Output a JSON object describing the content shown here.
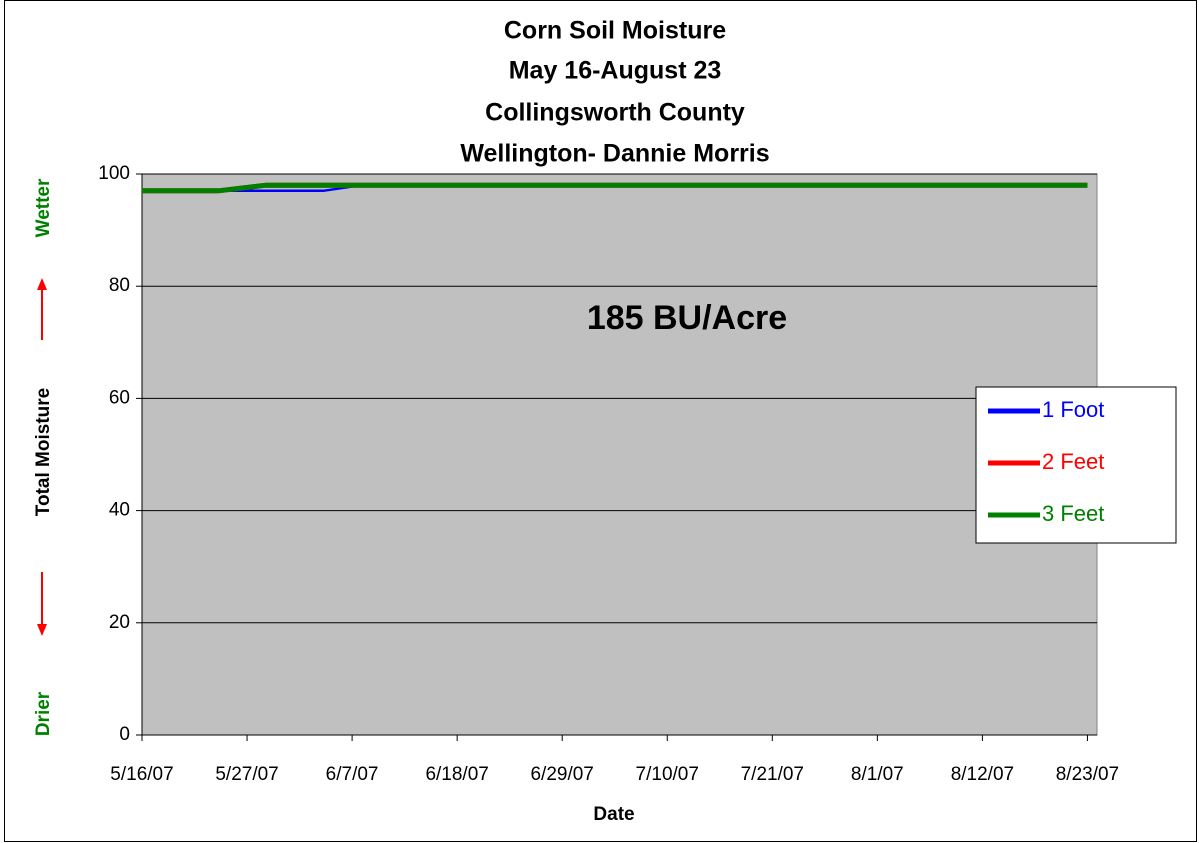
{
  "chart_data": {
    "type": "line",
    "title": [
      "Corn Soil Moisture",
      "May 16-August 23",
      "Collingsworth County",
      "Wellington- Dannie Morris"
    ],
    "annotation": "185 BU/Acre",
    "xlabel": "Date",
    "ylabel": "Total Moisture",
    "ylabel_top": "Wetter",
    "ylabel_bottom": "Drier",
    "x": [
      "2007-05-16",
      "2007-05-24",
      "2007-05-29",
      "2007-06-04",
      "2007-06-08",
      "2007-08-23"
    ],
    "series": [
      {
        "name": "1 Foot",
        "color": "#0000ff",
        "values": [
          97,
          97,
          97,
          97,
          98,
          98
        ]
      },
      {
        "name": "2 Feet",
        "color": "#ff0000",
        "values": [
          97,
          97,
          98,
          98,
          98,
          98
        ]
      },
      {
        "name": "3 Feet",
        "color": "#008000",
        "values": [
          97,
          97,
          98,
          98,
          98,
          98
        ]
      }
    ],
    "xlim": [
      "2007-05-16",
      "2007-08-24"
    ],
    "xticks": [
      {
        "value": "2007-05-16",
        "label": "5/16/07"
      },
      {
        "value": "2007-05-27",
        "label": "5/27/07"
      },
      {
        "value": "2007-06-07",
        "label": "6/7/07"
      },
      {
        "value": "2007-06-18",
        "label": "6/18/07"
      },
      {
        "value": "2007-06-29",
        "label": "6/29/07"
      },
      {
        "value": "2007-07-10",
        "label": "7/10/07"
      },
      {
        "value": "2007-07-21",
        "label": "7/21/07"
      },
      {
        "value": "2007-08-01",
        "label": "8/1/07"
      },
      {
        "value": "2007-08-12",
        "label": "8/12/07"
      },
      {
        "value": "2007-08-23",
        "label": "8/23/07"
      }
    ],
    "ylim": [
      0,
      100
    ],
    "yticks": [
      0,
      20,
      40,
      60,
      80,
      100
    ],
    "grid": true,
    "plot_background": "#c0c0c0",
    "legend": "right"
  }
}
